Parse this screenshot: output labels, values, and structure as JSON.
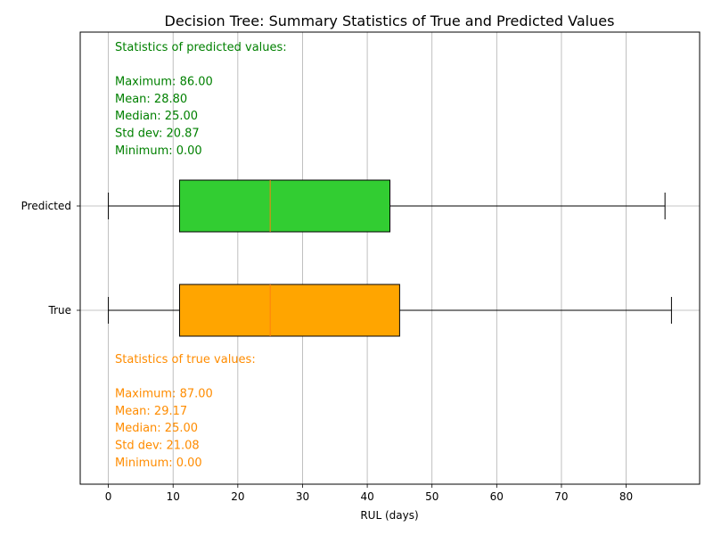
{
  "chart_data": {
    "type": "boxplot",
    "orientation": "horizontal",
    "title": "Decision Tree: Summary Statistics of True and Predicted Values",
    "xlabel": "RUL (days)",
    "ylabel": "",
    "xlim": [
      -4.35,
      91.35
    ],
    "xticks": [
      0,
      10,
      20,
      30,
      40,
      50,
      60,
      70,
      80
    ],
    "grid": "vertical",
    "series": [
      {
        "name": "True",
        "color": "#ffa500",
        "whisker_low": 0,
        "q1": 11,
        "median": 25,
        "q3": 45,
        "whisker_high": 87
      },
      {
        "name": "Predicted",
        "color": "#32cd32",
        "whisker_low": 0,
        "q1": 11,
        "median": 25,
        "q3": 43.5,
        "whisker_high": 86
      }
    ],
    "median_line_color": "#ff7f0e",
    "annotations": [
      {
        "id": "predicted",
        "color": "#008000",
        "lines": [
          "Statistics of predicted values:",
          "",
          "Maximum: 86.00",
          "Mean: 28.80",
          "Median: 25.00",
          "Std dev: 20.87",
          "Minimum: 0.00"
        ]
      },
      {
        "id": "true",
        "color": "#ff8c00",
        "lines": [
          "Statistics of true values:",
          "",
          "Maximum: 87.00",
          "Mean: 29.17",
          "Median: 25.00",
          "Std dev: 21.08",
          "Minimum: 0.00"
        ]
      }
    ]
  }
}
